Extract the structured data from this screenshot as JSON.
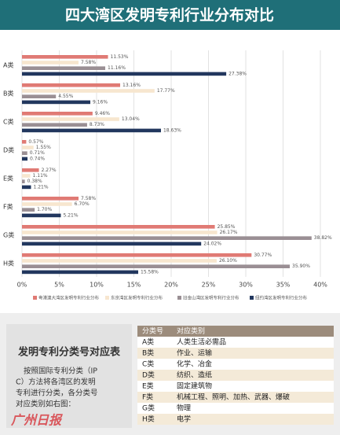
{
  "chart_data": {
    "type": "hbar",
    "title": "四大湾区发明专利行业分布对比",
    "categories": [
      "A类",
      "B类",
      "C类",
      "D类",
      "E类",
      "F类",
      "G类",
      "H类"
    ],
    "series": [
      {
        "name": "粤港澳大湾区发明专利行业分布",
        "color": "#e07a74",
        "values": [
          11.53,
          13.16,
          9.46,
          0.57,
          2.27,
          7.58,
          25.85,
          30.77
        ],
        "value_labels": [
          "11.53%",
          "13.16%",
          "9.46%",
          "0.57%",
          "2.27%",
          "7.58%",
          "25.85%",
          "30.77%"
        ]
      },
      {
        "name": "东京湾区发明专利行业分布",
        "color": "#f7e6cf",
        "values": [
          7.58,
          17.77,
          13.04,
          1.55,
          1.11,
          6.7,
          26.17,
          26.1
        ],
        "value_labels": [
          "7.58%",
          "17.77%",
          "13.04%",
          "1.55%",
          "1.11%",
          "6.70%",
          "26.17%",
          "26.10%"
        ]
      },
      {
        "name": "旧金山湾区发明专利行业分布",
        "color": "#9a8f94",
        "values": [
          11.16,
          4.55,
          8.73,
          0.71,
          0.38,
          1.7,
          38.82,
          35.9
        ],
        "value_labels": [
          "11.16%",
          "4.55%",
          "8.73%",
          "0.71%",
          "0.38%",
          "1.70%",
          "38.82%",
          "35.90%"
        ]
      },
      {
        "name": "纽约湾区发明专利行业分布",
        "color": "#22375e",
        "values": [
          27.38,
          9.16,
          18.63,
          0.74,
          1.21,
          5.21,
          24.02,
          15.58
        ],
        "value_labels": [
          "27.38%",
          "9.16%",
          "18.63%",
          "0.74%",
          "1.21%",
          "5.21%",
          "24.02%",
          "15.58%"
        ]
      }
    ],
    "xlim": [
      0,
      40
    ],
    "xticks": [
      {
        "value": 0,
        "label": "0%"
      },
      {
        "value": 5,
        "label": "5%"
      },
      {
        "value": 10,
        "label": "10%"
      },
      {
        "value": 15,
        "label": "15%"
      },
      {
        "value": 20,
        "label": "20%"
      },
      {
        "value": 25,
        "label": "25%"
      },
      {
        "value": 30,
        "label": "30%"
      },
      {
        "value": 35,
        "label": "35%"
      },
      {
        "value": 40,
        "label": "40%"
      }
    ],
    "grid": true
  },
  "table": {
    "title": "发明专利分类号对应表",
    "description": "按照国际专利分类（IPC）方法将各湾区的发明专利进行分类，各分类号对应类别如右图：",
    "header": [
      "分类号",
      "对应类别"
    ],
    "rows": [
      [
        "A类",
        "人类生活必需品"
      ],
      [
        "B类",
        "作业、运输"
      ],
      [
        "C类",
        "化学、冶金"
      ],
      [
        "D类",
        "纺织、造纸"
      ],
      [
        "E类",
        "固定建筑物"
      ],
      [
        "F类",
        "机械工程、照明、加热、武器、爆破"
      ],
      [
        "G类",
        "物理"
      ],
      [
        "H类",
        "电学"
      ]
    ]
  },
  "watermark": "广州日报"
}
